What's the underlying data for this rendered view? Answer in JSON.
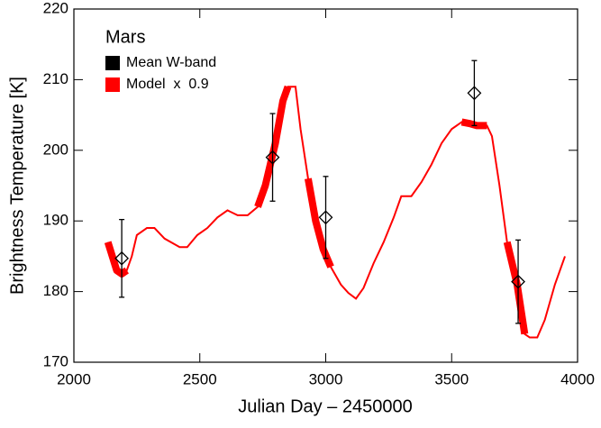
{
  "chart_data": {
    "type": "line",
    "annotation": "Mars",
    "x_label": "Julian Day – 2450000",
    "y_label": "Brightness Temperature [K]",
    "xlim": [
      2000,
      4000
    ],
    "xticks": [
      2000,
      2500,
      3000,
      3500,
      4000
    ],
    "ylim": [
      170,
      220
    ],
    "yticks": [
      170,
      180,
      190,
      200,
      210,
      220
    ],
    "legend": "upper left",
    "series": [
      {
        "name": "Mean W-band",
        "color": "#000000",
        "marker": "diamond",
        "x": [
          2190,
          2789,
          3000,
          3590,
          3764
        ],
        "values": [
          184.7,
          199.0,
          190.5,
          208.1,
          181.4
        ],
        "errors": [
          5.5,
          6.2,
          5.8,
          4.6,
          5.9
        ]
      },
      {
        "name": "Model  x  0.9",
        "color": "#ff0000",
        "x": [
          2135,
          2170,
          2190,
          2210,
          2230,
          2250,
          2290,
          2320,
          2360,
          2420,
          2450,
          2490,
          2530,
          2570,
          2610,
          2650,
          2690,
          2730,
          2760,
          2800,
          2830,
          2850,
          2880,
          2900,
          2930,
          2960,
          2990,
          3020,
          3060,
          3090,
          3120,
          3150,
          3190,
          3230,
          3270,
          3300,
          3340,
          3380,
          3420,
          3460,
          3500,
          3540,
          3570,
          3600,
          3640,
          3660,
          3690,
          3720,
          3760,
          3790,
          3810,
          3840,
          3870,
          3910,
          3950
        ],
        "values": [
          187,
          183,
          182.5,
          183,
          185,
          188,
          189,
          189,
          187.5,
          186.3,
          186.3,
          188,
          189,
          190.5,
          191.5,
          190.8,
          190.8,
          192,
          195,
          201,
          207,
          209,
          209,
          203,
          196,
          190,
          186,
          183.5,
          181,
          179.8,
          179,
          180.5,
          184,
          187,
          190.5,
          193.5,
          193.5,
          195.5,
          198,
          201,
          203,
          204,
          203.8,
          203.5,
          203.5,
          202,
          195,
          187,
          181,
          174,
          173.5,
          173.5,
          176,
          181,
          185
        ],
        "highlight": [
          187,
          183,
          182.5,
          183,
          null,
          null,
          null,
          null,
          null,
          null,
          null,
          null,
          null,
          null,
          null,
          null,
          null,
          192,
          195,
          201,
          207,
          209,
          null,
          null,
          196,
          190,
          186,
          183.5,
          null,
          null,
          null,
          null,
          null,
          null,
          null,
          null,
          null,
          null,
          null,
          null,
          null,
          204,
          203.8,
          203.5,
          203.5,
          null,
          null,
          187,
          181,
          174,
          null,
          null,
          null,
          null,
          null
        ]
      }
    ]
  }
}
